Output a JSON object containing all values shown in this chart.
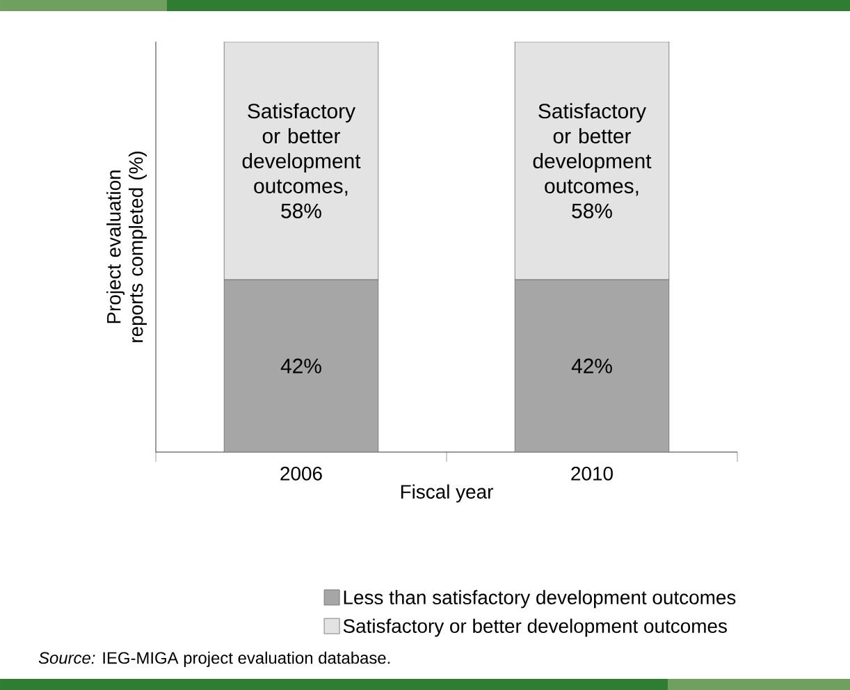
{
  "chart_data": {
    "type": "bar",
    "stacked": true,
    "categories": [
      "2006",
      "2010"
    ],
    "series": [
      {
        "name": "Less than satisfactory development outcomes",
        "color": "#a6a6a6",
        "values": [
          42,
          42
        ],
        "value_labels": [
          "42%",
          "42%"
        ]
      },
      {
        "name": "Satisfactory or better development outcomes",
        "color": "#e3e3e3",
        "values": [
          58,
          58
        ],
        "value_labels": [
          "Satisfactory or better development outcomes, 58%",
          "Satisfactory or better development outcomes, 58%"
        ]
      }
    ],
    "tick_labels": "x",
    "xlabel": "Fiscal year",
    "ylabel": "Project evaluation reports completed (%)",
    "legend": "bottom",
    "annotations": [
      "*Source:* IEG-MIGA project evaluation database."
    ]
  }
}
